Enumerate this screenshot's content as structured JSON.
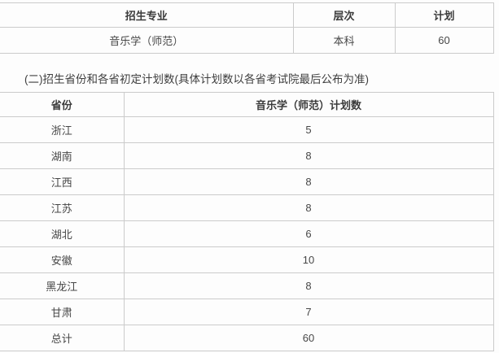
{
  "page": {
    "background": "#fdfdfd",
    "border_color": "#cbcbcb",
    "text_color": "#474747"
  },
  "summary_table": {
    "headers": [
      "招生专业",
      "层次",
      "计划"
    ],
    "row": {
      "major": "音乐学（师范）",
      "level": "本科",
      "plan": "60"
    }
  },
  "caption": "(二)招生省份和各省初定计划数(具体计划数以各省考试院最后公布为准)",
  "plan_table": {
    "headers": [
      "省份",
      "音乐学（师范）计划数"
    ],
    "rows": [
      {
        "province": "浙江",
        "count": "5"
      },
      {
        "province": "湖南",
        "count": "8"
      },
      {
        "province": "江西",
        "count": "8"
      },
      {
        "province": "江苏",
        "count": "8"
      },
      {
        "province": "湖北",
        "count": "6"
      },
      {
        "province": "安徽",
        "count": "10"
      },
      {
        "province": "黑龙江",
        "count": "8"
      },
      {
        "province": "甘肃",
        "count": "7"
      },
      {
        "province": "总计",
        "count": "60"
      }
    ]
  }
}
